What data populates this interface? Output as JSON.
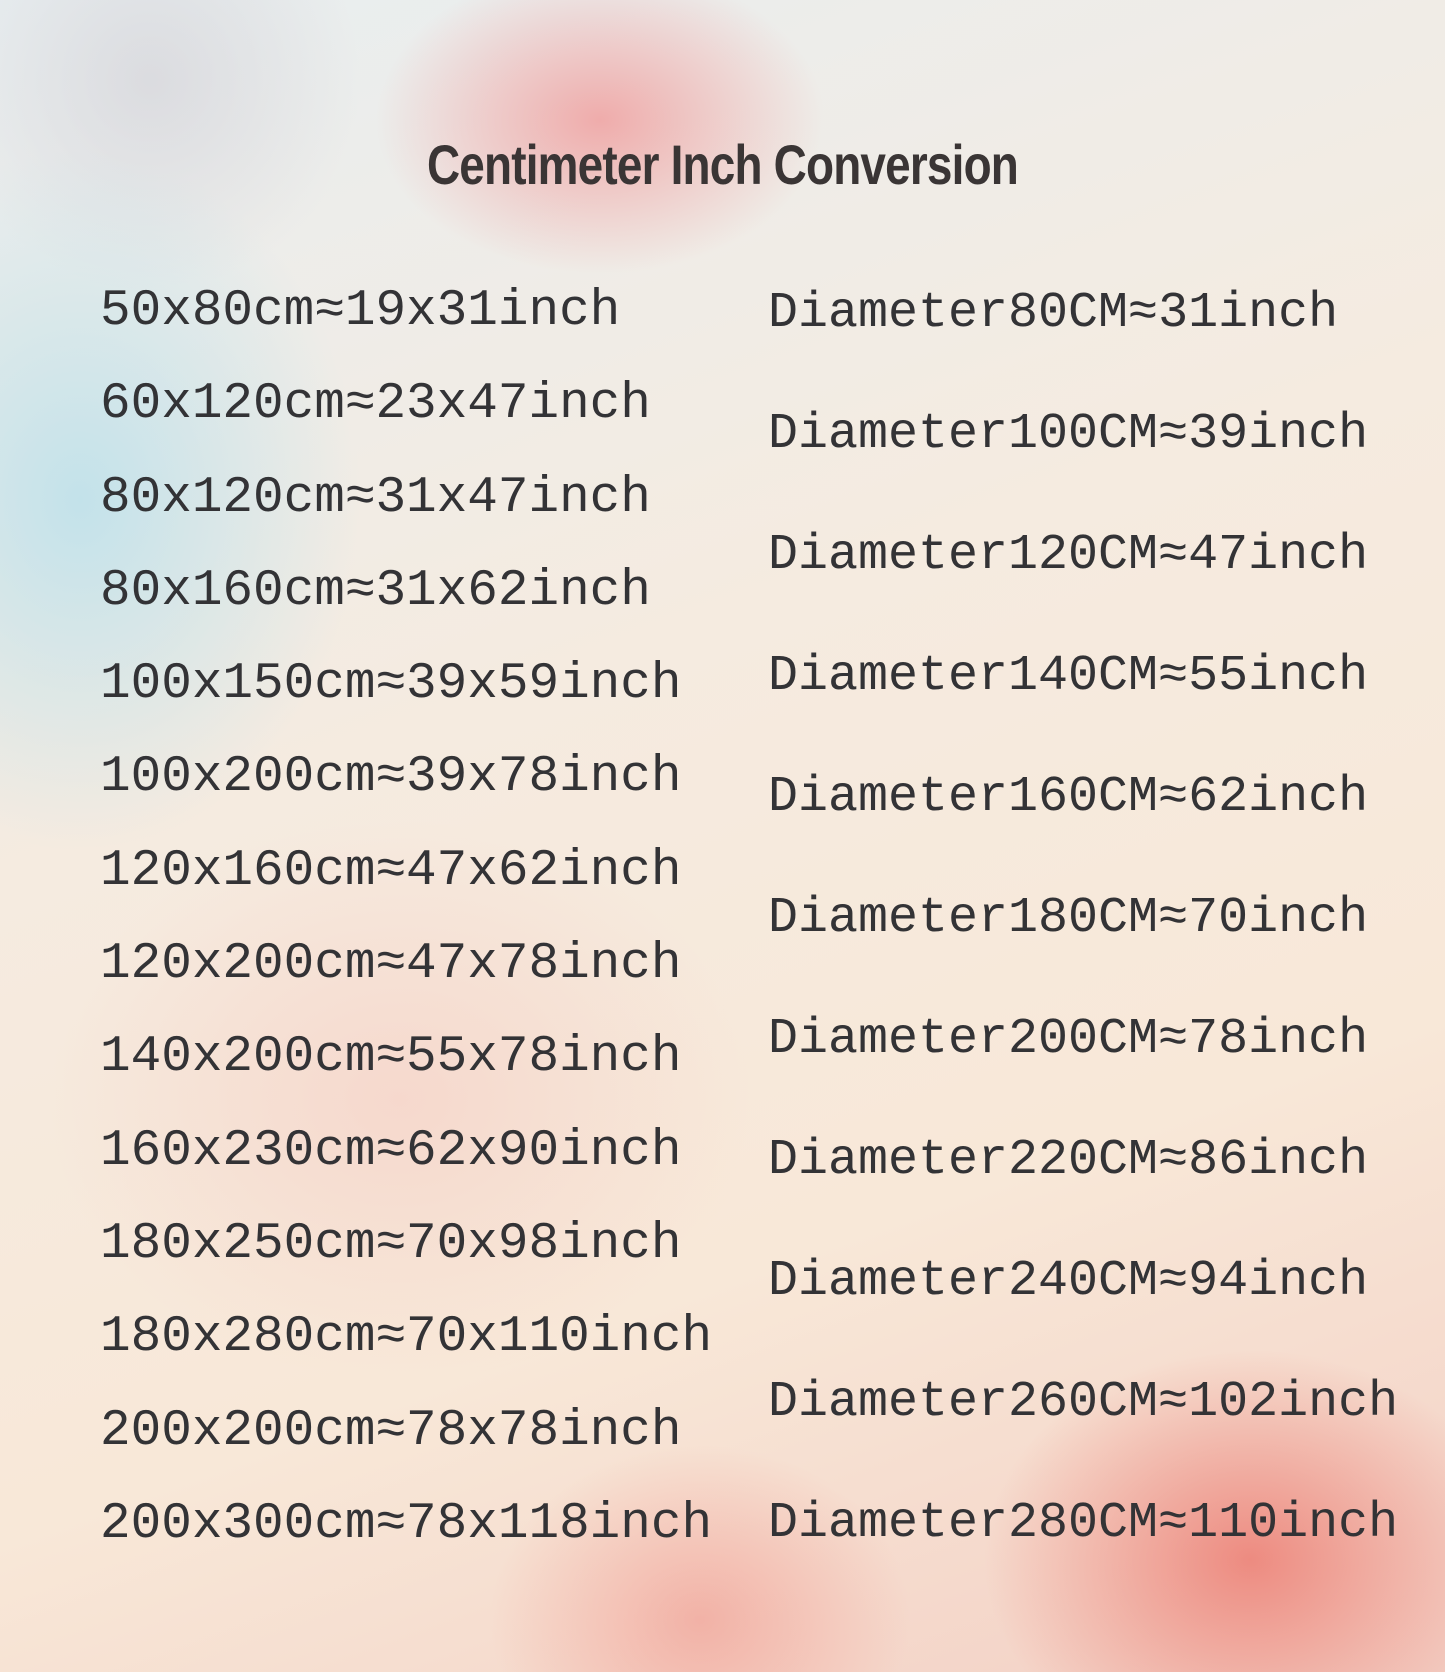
{
  "title": "Centimeter Inch Conversion",
  "rectangle_sizes": [
    "50x80cm≈19x31inch",
    "60x120cm≈23x47inch",
    "80x120cm≈31x47inch",
    "80x160cm≈31x62inch",
    "100x150cm≈39x59inch",
    "100x200cm≈39x78inch",
    "120x160cm≈47x62inch",
    "120x200cm≈47x78inch",
    "140x200cm≈55x78inch",
    "160x230cm≈62x90inch",
    "180x250cm≈70x98inch",
    "180x280cm≈70x110inch",
    "200x200cm≈78x78inch",
    "200x300cm≈78x118inch"
  ],
  "diameter_sizes": [
    "Diameter80CM≈31inch",
    "Diameter100CM≈39inch",
    "Diameter120CM≈47inch",
    "Diameter140CM≈55inch",
    "Diameter160CM≈62inch",
    "Diameter180CM≈70inch",
    "Diameter200CM≈78inch",
    "Diameter220CM≈86inch",
    "Diameter240CM≈94inch",
    "Diameter260CM≈102inch",
    "Diameter280CM≈110inch"
  ]
}
